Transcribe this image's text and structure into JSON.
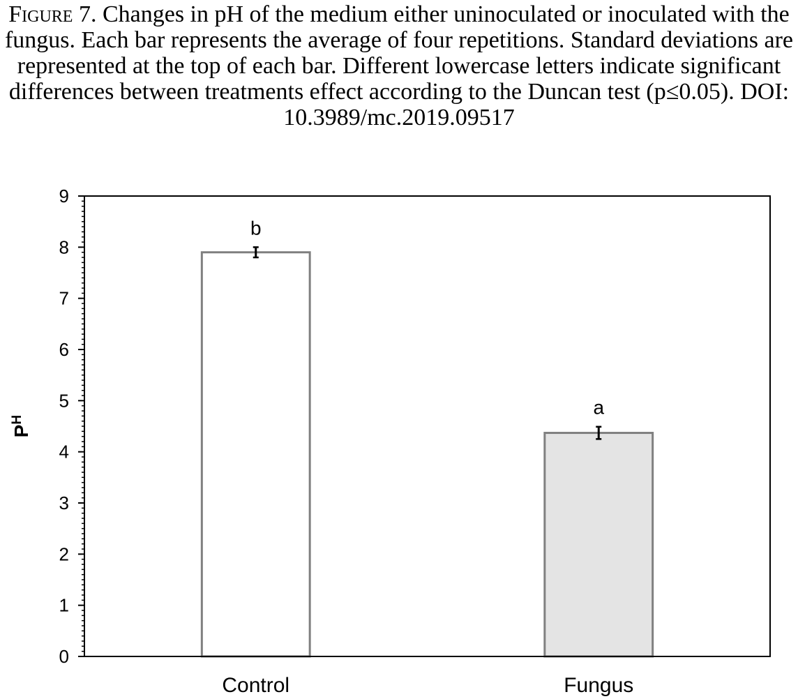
{
  "caption": {
    "label": "Figure 7.",
    "text": "Changes in pH of the medium either uninoculated or inoculated with the fungus. Each bar represents the average of four repetitions. Standard deviations are represented at the top of each bar. Different lowercase letters indicate significant differences between treatments effect according to the Duncan test (p≤0.05). DOI: 10.3989/mc.2019.09517"
  },
  "chart_data": {
    "type": "bar",
    "title": "",
    "xlabel": "",
    "ylabel": "P",
    "ylabel_superscript": "H",
    "ylim": [
      0,
      9
    ],
    "yticks": [
      0,
      1,
      2,
      3,
      4,
      5,
      6,
      7,
      8,
      9
    ],
    "categories": [
      "Control",
      "Fungus"
    ],
    "values": [
      7.9,
      4.37
    ],
    "errors": [
      0.1,
      0.12
    ],
    "significance_letters": [
      "b",
      "a"
    ],
    "bar_colors": [
      "#ffffff",
      "#e4e4e4"
    ],
    "bar_edge_color": "#808080",
    "grid": false,
    "legend": "none"
  }
}
